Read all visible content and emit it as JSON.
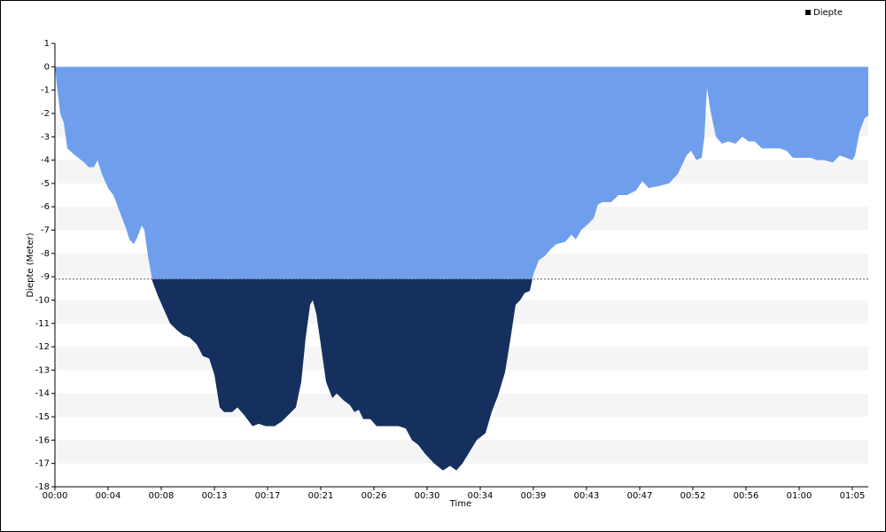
{
  "chart_data": {
    "type": "area",
    "y_label": "Diepte (Meter)",
    "x_label": "Time",
    "legend": "Diepte",
    "legend_position": "top-right",
    "series": [
      {
        "name": "Diepte",
        "color": "#6f9fec",
        "below_color": "#15305e",
        "x": [
          0,
          0.14,
          0.43,
          0.72,
          1.01,
          1.66,
          2.38,
          2.74,
          3.18,
          3.47,
          3.83,
          4.33,
          4.77,
          5.27,
          5.78,
          6.07,
          6.43,
          6.72,
          7.08,
          7.29,
          7.58,
          7.95,
          8.38,
          8.88,
          9.39,
          9.97,
          10.47,
          10.98,
          11.56,
          12.06,
          12.57,
          13.0,
          13.43,
          13.79,
          14.44,
          14.88,
          15.38,
          16.11,
          16.61,
          17.19,
          17.91,
          18.49,
          19.07,
          19.64,
          20.08,
          20.44,
          20.8,
          21.02,
          21.31,
          21.67,
          22.1,
          22.61,
          22.97,
          23.54,
          24.05,
          24.41,
          24.77,
          25.13,
          25.71,
          26.22,
          27.3,
          28.02,
          28.6,
          29.1,
          29.61,
          30.19,
          30.91,
          31.63,
          32.21,
          32.72,
          33.22,
          33.8,
          34.38,
          35.1,
          35.6,
          36.11,
          36.69,
          37.12,
          37.55,
          37.92,
          38.28,
          38.71,
          39.0,
          39.43,
          39.94,
          40.44,
          40.88,
          41.6,
          42.1,
          42.46,
          42.9,
          43.33,
          43.91,
          44.27,
          44.63,
          45.35,
          45.93,
          46.65,
          47.38,
          47.88,
          48.39,
          49.33,
          50.05,
          50.77,
          51.49,
          51.85,
          52.29,
          52.72,
          52.94,
          53.15,
          53.44,
          53.88,
          54.38,
          54.89,
          55.47,
          56.04,
          56.55,
          57.05,
          57.63,
          58.21,
          59.08,
          59.65,
          60.16,
          60.88,
          61.6,
          62.11,
          62.69,
          63.41,
          63.99,
          64.49,
          65.0,
          65.22,
          65.58,
          66.01,
          66.3
        ],
        "values": [
          0,
          -0.7,
          -2,
          -2.4,
          -3.5,
          -3.8,
          -4.1,
          -4.3,
          -4.3,
          -4.0,
          -4.6,
          -5.2,
          -5.5,
          -6.2,
          -6.9,
          -7.4,
          -7.6,
          -7.3,
          -6.8,
          -7.0,
          -8.1,
          -9.2,
          -9.8,
          -10.4,
          -11.0,
          -11.3,
          -11.5,
          -11.6,
          -11.9,
          -12.4,
          -12.5,
          -13.2,
          -14.6,
          -14.8,
          -14.8,
          -14.6,
          -14.9,
          -15.4,
          -15.3,
          -15.4,
          -15.4,
          -15.2,
          -14.9,
          -14.6,
          -13.5,
          -11.6,
          -10.2,
          -10.0,
          -10.6,
          -11.9,
          -13.5,
          -14.2,
          -14.0,
          -14.3,
          -14.5,
          -14.8,
          -14.7,
          -15.1,
          -15.1,
          -15.4,
          -15.4,
          -15.4,
          -15.5,
          -16.0,
          -16.2,
          -16.6,
          -17.0,
          -17.3,
          -17.1,
          -17.3,
          -17.0,
          -16.5,
          -16.0,
          -15.7,
          -14.8,
          -14.1,
          -13.1,
          -11.7,
          -10.2,
          -10.0,
          -9.7,
          -9.6,
          -8.9,
          -8.3,
          -8.1,
          -7.8,
          -7.6,
          -7.5,
          -7.2,
          -7.4,
          -7.0,
          -6.8,
          -6.5,
          -5.9,
          -5.8,
          -5.8,
          -5.5,
          -5.5,
          -5.3,
          -4.9,
          -5.2,
          -5.1,
          -5.0,
          -4.6,
          -3.8,
          -3.6,
          -4.0,
          -3.9,
          -3.0,
          -0.9,
          -1.9,
          -3.0,
          -3.3,
          -3.2,
          -3.3,
          -3.0,
          -3.2,
          -3.2,
          -3.5,
          -3.5,
          -3.5,
          -3.6,
          -3.9,
          -3.9,
          -3.9,
          -4.0,
          -4.0,
          -4.1,
          -3.8,
          -3.9,
          -4.0,
          -3.8,
          -2.8,
          -2.2,
          -2.1
        ]
      }
    ],
    "threshold": -9.1,
    "xlim": [
      0,
      66.3
    ],
    "xticks": [
      {
        "value": 0,
        "label": "00:00"
      },
      {
        "value": 4.333,
        "label": "00:04"
      },
      {
        "value": 8.667,
        "label": "00:08"
      },
      {
        "value": 13,
        "label": "00:13"
      },
      {
        "value": 17.333,
        "label": "00:17"
      },
      {
        "value": 21.667,
        "label": "00:21"
      },
      {
        "value": 26,
        "label": "00:26"
      },
      {
        "value": 30.333,
        "label": "00:30"
      },
      {
        "value": 34.667,
        "label": "00:34"
      },
      {
        "value": 39,
        "label": "00:39"
      },
      {
        "value": 43.333,
        "label": "00:43"
      },
      {
        "value": 47.667,
        "label": "00:47"
      },
      {
        "value": 52,
        "label": "00:52"
      },
      {
        "value": 56.333,
        "label": "00:56"
      },
      {
        "value": 60.667,
        "label": "01:00"
      },
      {
        "value": 65,
        "label": "01:05"
      }
    ],
    "ylim": [
      -18,
      1
    ],
    "yticks": [
      1,
      0,
      -1,
      -2,
      -3,
      -4,
      -5,
      -6,
      -7,
      -8,
      -9,
      -10,
      -11,
      -12,
      -13,
      -14,
      -15,
      -16,
      -17,
      -18
    ],
    "grid": "bands"
  }
}
